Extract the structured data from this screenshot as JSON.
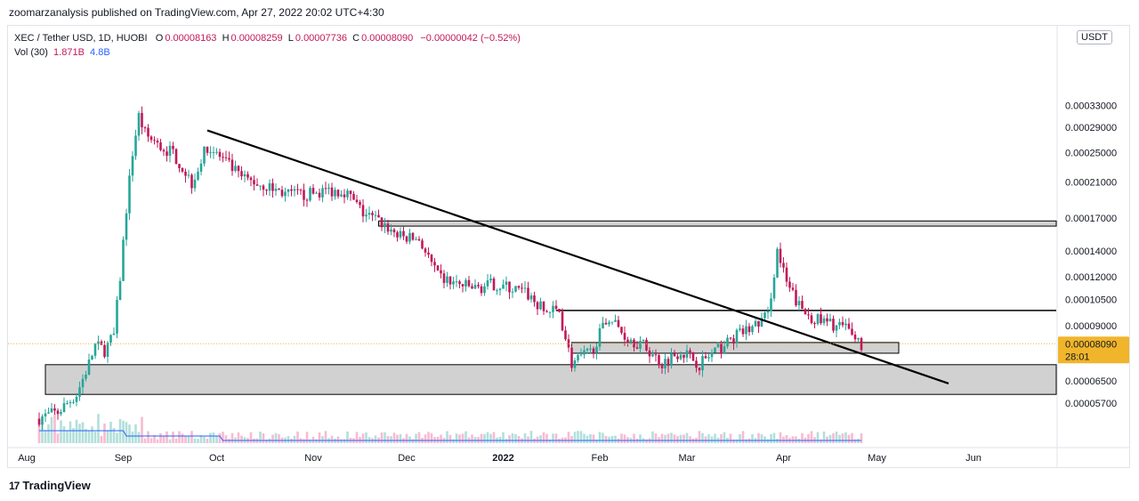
{
  "header": {
    "published_text": "zoomarzanalysis published on TradingView.com, Apr 27, 2022 20:02 UTC+4:30"
  },
  "legend": {
    "symbol": "XEC / Tether USD, 1D, HUOBI",
    "open_label": "O",
    "open": "0.00008163",
    "high_label": "H",
    "high": "0.00008259",
    "low_label": "L",
    "low": "0.00007736",
    "close_label": "C",
    "close": "0.00008090",
    "change": "−0.00000042 (−0.52%)",
    "vol_label": "Vol (30)",
    "vol_a": "1.871B",
    "vol_b": "4.8B"
  },
  "currency_badge": "USDT",
  "price_tag": {
    "price": "0.00008090",
    "countdown": "28:01",
    "color": "#f0b52b"
  },
  "colors": {
    "bull": "#26a69a",
    "bear": "#c21858",
    "axis_text": "#131722",
    "grid_border": "#e0e3eb",
    "zone_fill": "#d1d1d1",
    "volume_ma": "#2962ff"
  },
  "footer": {
    "brand": "TradingView",
    "icon": "tradingview-logo-icon"
  },
  "chart_data": {
    "type": "candlestick",
    "y_scale": "log",
    "price_axis_labels": [
      "0.00033000",
      "0.00029000",
      "0.00025000",
      "0.00021000",
      "0.00017000",
      "0.00014000",
      "0.00012000",
      "0.00010500",
      "0.00009000",
      "0.00006500",
      "0.00005700"
    ],
    "time_axis_labels": [
      "Aug",
      "Sep",
      "Oct",
      "Nov",
      "Dec",
      "2022",
      "Feb",
      "Mar",
      "Apr",
      "May",
      "Jun"
    ],
    "time_axis_bold": [
      "2022"
    ],
    "series_close_approx": [
      {
        "date": "2021-08-05",
        "close": 5.2e-05
      },
      {
        "date": "2021-08-12",
        "close": 5.4e-05
      },
      {
        "date": "2021-08-18",
        "close": 6e-05
      },
      {
        "date": "2021-08-22",
        "close": 7.2e-05
      },
      {
        "date": "2021-08-24",
        "close": 8e-05
      },
      {
        "date": "2021-08-27",
        "close": 7.8e-05
      },
      {
        "date": "2021-08-30",
        "close": 8.5e-05
      },
      {
        "date": "2021-09-01",
        "close": 0.00012
      },
      {
        "date": "2021-09-03",
        "close": 0.00018
      },
      {
        "date": "2021-09-05",
        "close": 0.00025
      },
      {
        "date": "2021-09-07",
        "close": 0.00031
      },
      {
        "date": "2021-09-09",
        "close": 0.00028
      },
      {
        "date": "2021-09-13",
        "close": 0.00026
      },
      {
        "date": "2021-09-18",
        "close": 0.00025
      },
      {
        "date": "2021-09-24",
        "close": 0.00021
      },
      {
        "date": "2021-09-29",
        "close": 0.00026
      },
      {
        "date": "2021-10-04",
        "close": 0.00024
      },
      {
        "date": "2021-10-10",
        "close": 0.000215
      },
      {
        "date": "2021-10-18",
        "close": 0.000205
      },
      {
        "date": "2021-10-25",
        "close": 0.000195
      },
      {
        "date": "2021-10-31",
        "close": 0.000195
      },
      {
        "date": "2021-11-06",
        "close": 0.0002
      },
      {
        "date": "2021-11-12",
        "close": 0.0002
      },
      {
        "date": "2021-11-18",
        "close": 0.000175
      },
      {
        "date": "2021-11-24",
        "close": 0.000165
      },
      {
        "date": "2021-11-30",
        "close": 0.000152
      },
      {
        "date": "2021-12-06",
        "close": 0.00015
      },
      {
        "date": "2021-12-12",
        "close": 0.00012
      },
      {
        "date": "2021-12-18",
        "close": 0.000115
      },
      {
        "date": "2021-12-24",
        "close": 0.000112
      },
      {
        "date": "2021-12-30",
        "close": 0.000115
      },
      {
        "date": "2022-01-05",
        "close": 0.000112
      },
      {
        "date": "2022-01-10",
        "close": 0.000108
      },
      {
        "date": "2022-01-15",
        "close": 9.8e-05
      },
      {
        "date": "2022-01-20",
        "close": 9.8e-05
      },
      {
        "date": "2022-01-24",
        "close": 7.2e-05
      },
      {
        "date": "2022-01-30",
        "close": 7.7e-05
      },
      {
        "date": "2022-02-05",
        "close": 9.5e-05
      },
      {
        "date": "2022-02-10",
        "close": 8.5e-05
      },
      {
        "date": "2022-02-16",
        "close": 8e-05
      },
      {
        "date": "2022-02-22",
        "close": 7.2e-05
      },
      {
        "date": "2022-02-28",
        "close": 7.8e-05
      },
      {
        "date": "2022-03-06",
        "close": 7.2e-05
      },
      {
        "date": "2022-03-12",
        "close": 7.8e-05
      },
      {
        "date": "2022-03-18",
        "close": 8.5e-05
      },
      {
        "date": "2022-03-24",
        "close": 9e-05
      },
      {
        "date": "2022-03-28",
        "close": 9.6e-05
      },
      {
        "date": "2022-03-31",
        "close": 0.00014
      },
      {
        "date": "2022-04-03",
        "close": 0.000115
      },
      {
        "date": "2022-04-08",
        "close": 9.8e-05
      },
      {
        "date": "2022-04-14",
        "close": 9.2e-05
      },
      {
        "date": "2022-04-20",
        "close": 9e-05
      },
      {
        "date": "2022-04-24",
        "close": 8.6e-05
      },
      {
        "date": "2022-04-27",
        "close": 8.09e-05
      }
    ],
    "trendline": {
      "from": {
        "date": "2021-09-28",
        "price": 0.000285
      },
      "to": {
        "date": "2022-05-24",
        "price": 6.4e-05
      }
    },
    "horizontal_levels": [
      {
        "type": "zone",
        "from_date": "2021-11-22",
        "to_date": "2022-06-30",
        "low": 0.000162,
        "high": 0.000167
      },
      {
        "type": "line",
        "from_date": "2022-01-18",
        "to_date": "2022-06-30",
        "price": 9.85e-05
      },
      {
        "type": "zone",
        "from_date": "2022-01-23",
        "to_date": "2022-05-08",
        "low": 7.65e-05,
        "high": 8.15e-05
      },
      {
        "type": "zone",
        "from_date": "2021-08-07",
        "to_date": "2022-06-30",
        "low": 6e-05,
        "high": 7.15e-05
      }
    ],
    "grid": false,
    "legend_position": "top-left"
  }
}
